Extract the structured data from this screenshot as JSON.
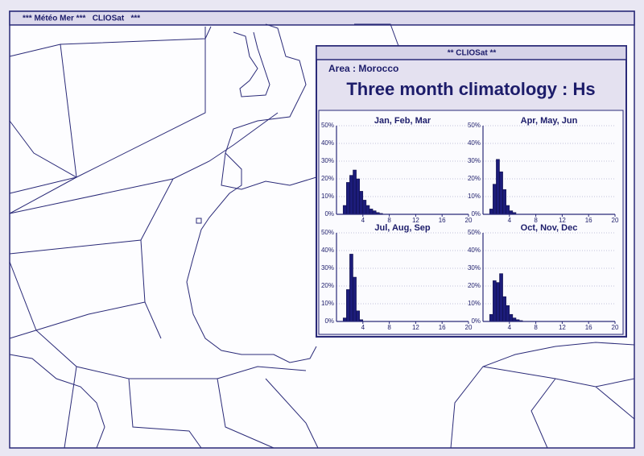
{
  "app_title": "*** Météo Mer ***   CLIOSat   ***",
  "window_title": "** CLIOSat **",
  "area_label": "Area : Morocco",
  "heading": "Three month climatology : Hs",
  "chart_data": [
    {
      "type": "histogram",
      "title": "Jan, Feb, Mar",
      "color": "#1c1c7a",
      "bins": [
        1,
        1.5,
        2,
        2.5,
        3,
        3.5,
        4,
        4.5,
        5,
        5.5,
        6,
        6.5,
        7
      ],
      "values": [
        5,
        18,
        22,
        25,
        20,
        13,
        8,
        5,
        3,
        2,
        1,
        0.5
      ],
      "xlim": [
        0,
        20
      ],
      "xticks": [
        4,
        8,
        12,
        16,
        20
      ],
      "ylim": [
        0,
        50
      ],
      "yticks": [
        {
          "value": 0,
          "label": "0%"
        },
        {
          "value": 10,
          "label": "10%"
        },
        {
          "value": 20,
          "label": "20%"
        },
        {
          "value": 30,
          "label": "30%"
        },
        {
          "value": 40,
          "label": "40%"
        },
        {
          "value": 50,
          "label": "50%"
        }
      ],
      "grid": true
    },
    {
      "type": "histogram",
      "title": "Apr, May, Jun",
      "color": "#1c1c7a",
      "bins": [
        1,
        1.5,
        2,
        2.5,
        3,
        3.5,
        4,
        4.5,
        5
      ],
      "values": [
        3,
        17,
        31,
        24,
        14,
        5,
        2,
        1
      ],
      "xlim": [
        0,
        20
      ],
      "xticks": [
        4,
        8,
        12,
        16,
        20
      ],
      "ylim": [
        0,
        50
      ],
      "yticks": [
        {
          "value": 0,
          "label": "0%"
        },
        {
          "value": 10,
          "label": "10%"
        },
        {
          "value": 20,
          "label": "20%"
        },
        {
          "value": 30,
          "label": "30%"
        },
        {
          "value": 40,
          "label": "40%"
        },
        {
          "value": 50,
          "label": "50%"
        }
      ],
      "grid": true
    },
    {
      "type": "histogram",
      "title": "Jul, Aug, Sep",
      "color": "#1c1c7a",
      "bins": [
        1,
        1.5,
        2,
        2.5,
        3,
        3.5,
        4
      ],
      "values": [
        2,
        18,
        38,
        25,
        6,
        1
      ],
      "xlim": [
        0,
        20
      ],
      "xticks": [
        4,
        8,
        12,
        16,
        20
      ],
      "ylim": [
        0,
        50
      ],
      "yticks": [
        {
          "value": 0,
          "label": "0%"
        },
        {
          "value": 10,
          "label": "10%"
        },
        {
          "value": 20,
          "label": "20%"
        },
        {
          "value": 30,
          "label": "30%"
        },
        {
          "value": 40,
          "label": "40%"
        },
        {
          "value": 50,
          "label": "50%"
        }
      ],
      "grid": true
    },
    {
      "type": "histogram",
      "title": "Oct, Nov, Dec",
      "color": "#1c1c7a",
      "bins": [
        1,
        1.5,
        2,
        2.5,
        3,
        3.5,
        4,
        4.5,
        5,
        5.5,
        6
      ],
      "values": [
        4,
        23,
        22,
        27,
        14,
        9,
        4,
        2,
        1,
        0.5
      ],
      "xlim": [
        0,
        20
      ],
      "xticks": [
        4,
        8,
        12,
        16,
        20
      ],
      "ylim": [
        0,
        50
      ],
      "yticks": [
        {
          "value": 0,
          "label": "0%"
        },
        {
          "value": 10,
          "label": "10%"
        },
        {
          "value": 20,
          "label": "20%"
        },
        {
          "value": 30,
          "label": "30%"
        },
        {
          "value": 40,
          "label": "40%"
        },
        {
          "value": 50,
          "label": "50%"
        }
      ],
      "grid": true
    }
  ]
}
